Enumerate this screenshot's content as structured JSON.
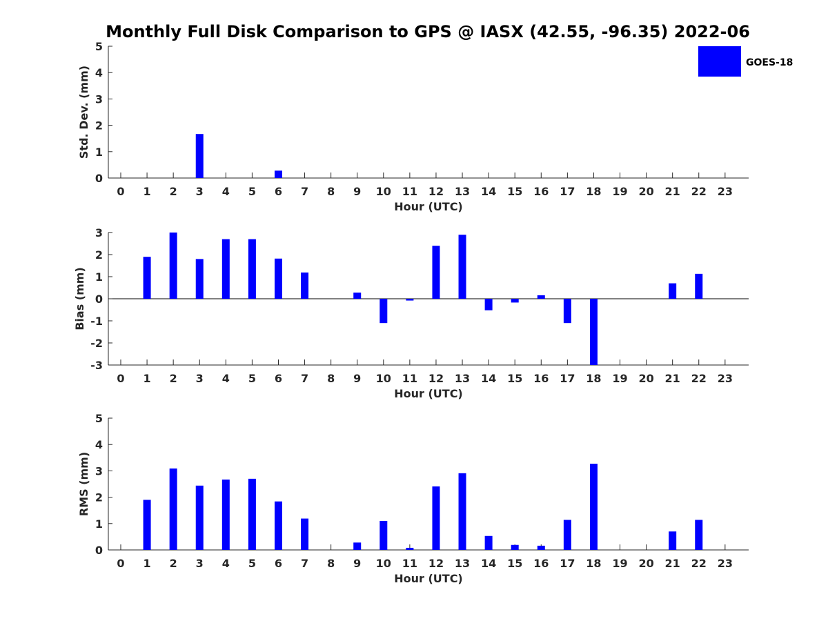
{
  "chart_data": {
    "title": "Monthly Full Disk Comparison to GPS @ IASX (42.55, -96.35) 2022-06",
    "series_name": "GOES-18",
    "color": "#0000ff",
    "hours": [
      "0",
      "1",
      "2",
      "3",
      "4",
      "5",
      "6",
      "7",
      "8",
      "9",
      "10",
      "11",
      "12",
      "13",
      "14",
      "15",
      "16",
      "17",
      "18",
      "19",
      "20",
      "21",
      "22",
      "23"
    ],
    "panels": [
      {
        "type": "bar",
        "ylabel": "Std. Dev. (mm)",
        "xlabel": "Hour (UTC)",
        "ylim": [
          0,
          5
        ],
        "yticks": [
          "0",
          "1",
          "2",
          "3",
          "4",
          "5"
        ],
        "values": [
          null,
          null,
          null,
          1.67,
          null,
          null,
          0.28,
          null,
          null,
          null,
          null,
          null,
          null,
          null,
          null,
          null,
          null,
          null,
          null,
          null,
          null,
          null,
          null,
          null
        ]
      },
      {
        "type": "bar",
        "ylabel": "Bias (mm)",
        "xlabel": "Hour (UTC)",
        "ylim": [
          -3,
          3
        ],
        "yticks": [
          "-3",
          "-2",
          "-1",
          "0",
          "1",
          "2",
          "3"
        ],
        "values": [
          null,
          1.9,
          3.0,
          1.8,
          2.7,
          2.7,
          1.82,
          1.19,
          null,
          0.28,
          -1.1,
          -0.08,
          2.4,
          2.9,
          -0.52,
          -0.17,
          0.16,
          -1.1,
          -3.26,
          null,
          null,
          0.7,
          1.13,
          null
        ]
      },
      {
        "type": "bar",
        "ylabel": "RMS (mm)",
        "xlabel": "Hour (UTC)",
        "ylim": [
          0,
          5
        ],
        "yticks": [
          "0",
          "1",
          "2",
          "3",
          "4",
          "5"
        ],
        "values": [
          null,
          1.9,
          3.09,
          2.44,
          2.67,
          2.7,
          1.84,
          1.19,
          null,
          0.28,
          1.1,
          0.08,
          2.41,
          2.91,
          0.53,
          0.19,
          0.16,
          1.14,
          3.27,
          null,
          null,
          0.7,
          1.14,
          null
        ]
      }
    ]
  }
}
